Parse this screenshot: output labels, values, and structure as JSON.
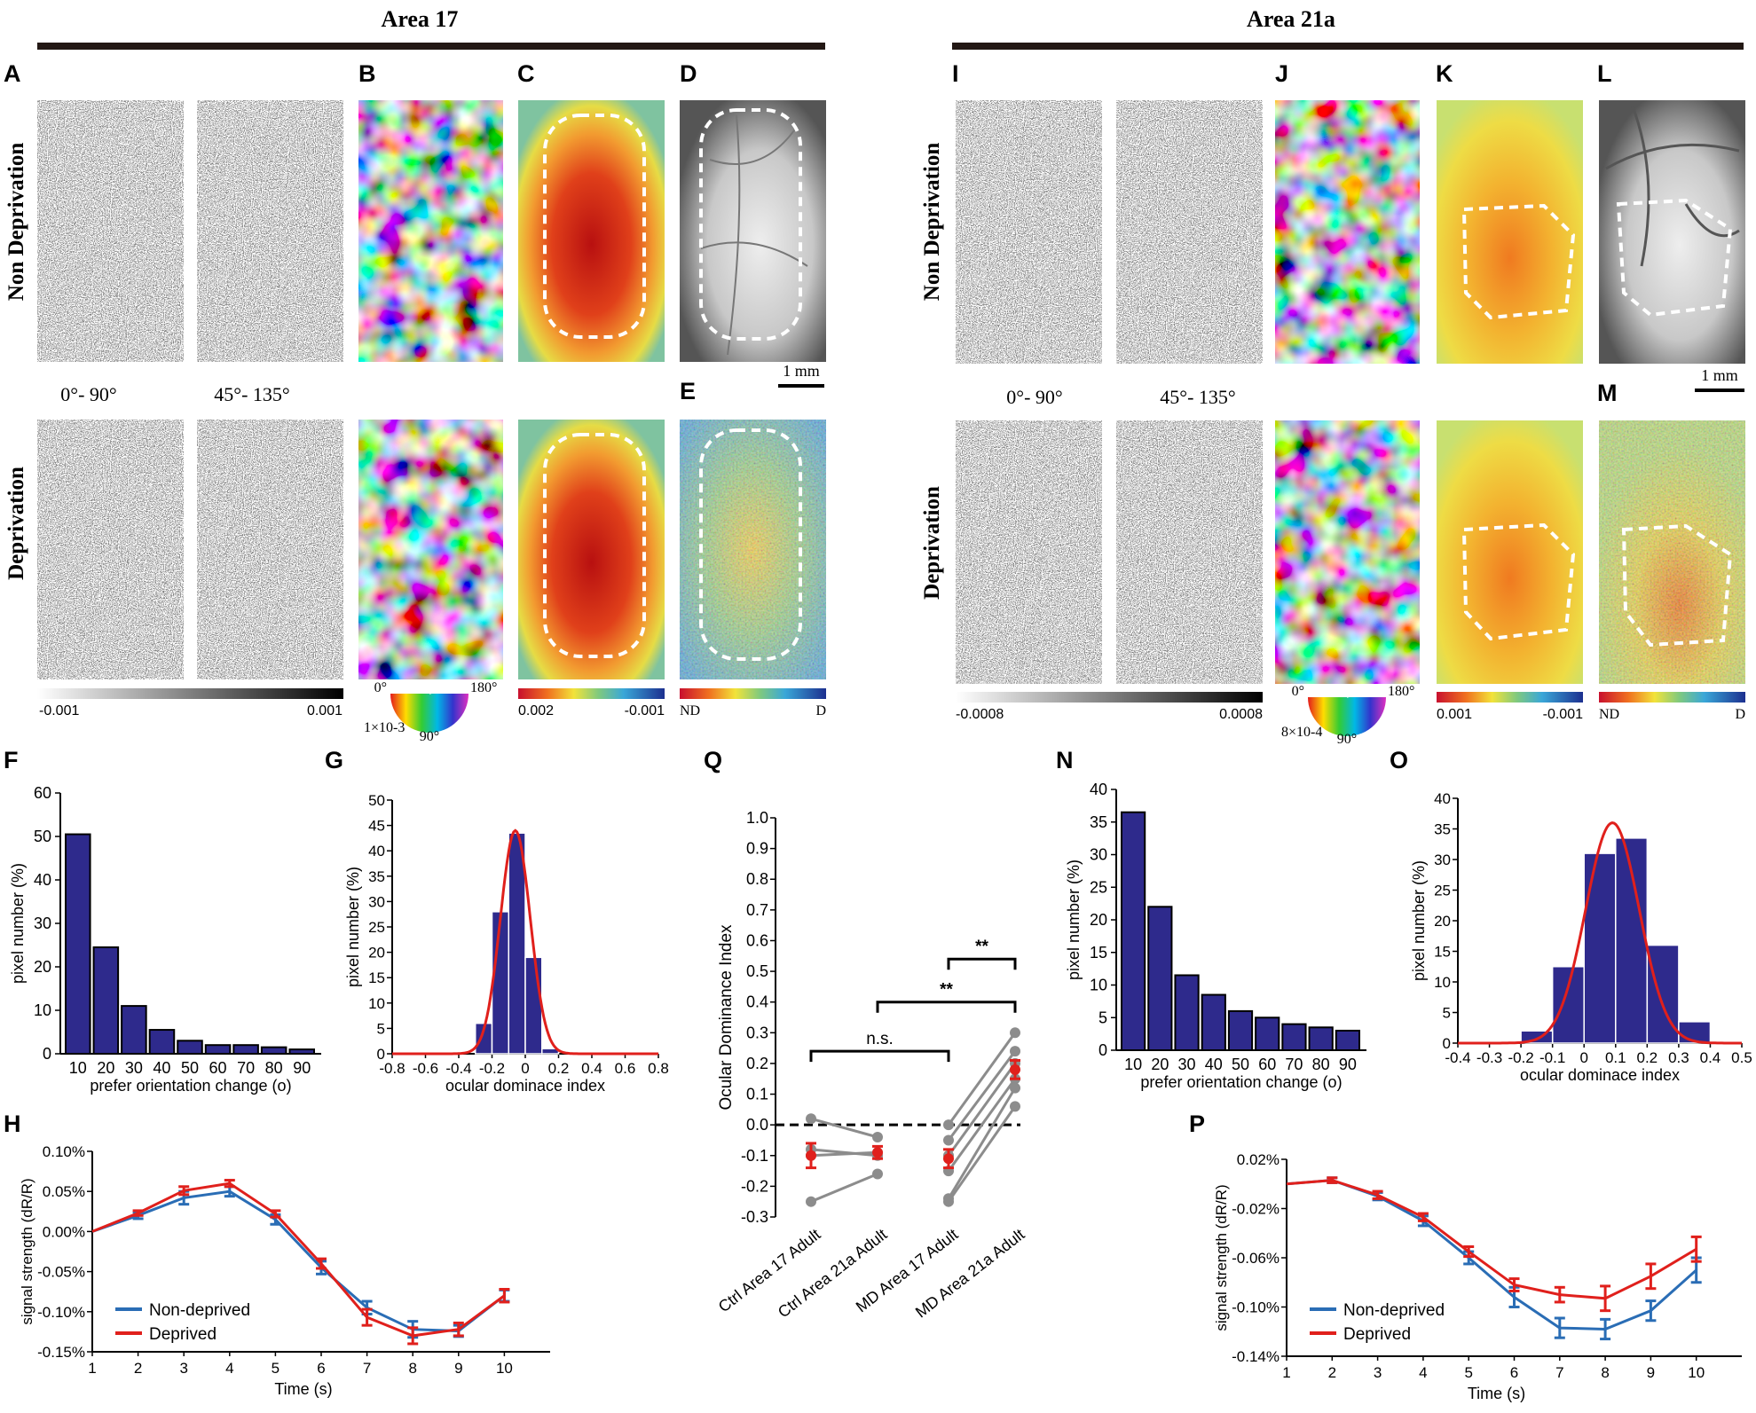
{
  "headers": {
    "left": "Area 17",
    "right": "Area 21a"
  },
  "panel_letters": {
    "A": "A",
    "B": "B",
    "C": "C",
    "D": "D",
    "E": "E",
    "I": "I",
    "J": "J",
    "K": "K",
    "L": "L",
    "M": "M",
    "F": "F",
    "G": "G",
    "H": "H",
    "Q": "Q",
    "N": "N",
    "O": "O",
    "P": "P"
  },
  "row_labels": {
    "top": "Non Deprivation",
    "bottom": "Deprivation"
  },
  "stim_labels": {
    "a17_first": "0°- 90°",
    "a17_second": "45°- 135°",
    "a21_first": "0°- 90°",
    "a21_second": "45°- 135°"
  },
  "scale_bars": {
    "a17": "1 mm",
    "a21": "1 mm"
  },
  "colorbars": {
    "a17_gray": {
      "min": "-0.001",
      "max": "0.001"
    },
    "a17_polar": {
      "start": "0°",
      "end": "180°",
      "mid": "90°",
      "scale": "1×10-3"
    },
    "a17_od": {
      "min": "0.002",
      "max": "-0.001"
    },
    "a17_nd": {
      "min": "ND",
      "max": "D"
    },
    "a21_gray": {
      "min": "-0.0008",
      "max": "0.0008"
    },
    "a21_polar": {
      "start": "0°",
      "end": "180°",
      "mid": "90°",
      "scale": "8×10-4"
    },
    "a21_od": {
      "min": "0.001",
      "max": "-0.001"
    },
    "a21_nd": {
      "min": "ND",
      "max": "D"
    }
  },
  "colors": {
    "bar": "#2e2a8c",
    "fit": "#e0201c",
    "nondeprived": "#2a6db5",
    "deprived": "#e0201c",
    "pair": "#8c8c8c"
  },
  "chart_data": [
    {
      "id": "F",
      "type": "bar",
      "categories": [
        "10",
        "20",
        "30",
        "40",
        "50",
        "60",
        "70",
        "80",
        "90"
      ],
      "values": [
        50.5,
        24.5,
        11,
        5.5,
        3,
        2,
        2,
        1.5,
        1
      ],
      "xlabel": "prefer orientation change (o)",
      "ylabel": "pixel number  (%)",
      "ylim": [
        0,
        60
      ],
      "yticks": [
        "0",
        "10",
        "20",
        "30",
        "40",
        "50",
        "60"
      ]
    },
    {
      "id": "G",
      "type": "bar",
      "bin_centers": [
        -0.25,
        -0.15,
        -0.05,
        0.05,
        0.15
      ],
      "values": [
        6,
        28,
        43.5,
        19,
        1
      ],
      "fit": {
        "mean": -0.06,
        "sd": 0.09,
        "peak": 44
      },
      "xlabel": "ocular dominace index",
      "ylabel": "pixel number (%)",
      "xlim": [
        -0.8,
        0.8
      ],
      "ylim": [
        0,
        50
      ],
      "xticks": [
        "-0.8",
        "-0.6",
        "-0.4",
        "-0.2",
        "0",
        "0.2",
        "0.4",
        "0.6",
        "0.8"
      ],
      "yticks": [
        "0",
        "5",
        "10",
        "15",
        "20",
        "25",
        "30",
        "35",
        "40",
        "45",
        "50"
      ]
    },
    {
      "id": "H",
      "type": "line",
      "x": [
        1,
        2,
        3,
        4,
        5,
        6,
        7,
        8,
        9,
        10
      ],
      "series": [
        {
          "name": "Non-deprived",
          "values": [
            0,
            0.02,
            0.042,
            0.05,
            0.015,
            -0.045,
            -0.095,
            -0.122,
            -0.124,
            -0.08
          ],
          "err": [
            0,
            0.004,
            0.008,
            0.006,
            0.006,
            0.008,
            0.008,
            0.01,
            0.007,
            0.007
          ]
        },
        {
          "name": "Deprived",
          "values": [
            0,
            0.023,
            0.051,
            0.06,
            0.022,
            -0.04,
            -0.107,
            -0.13,
            -0.122,
            -0.08
          ],
          "err": [
            0,
            0.003,
            0.005,
            0.004,
            0.004,
            0.006,
            0.01,
            0.01,
            0.008,
            0.008
          ]
        }
      ],
      "xlabel": "Time (s)",
      "ylabel": "signal strength (dR/R)",
      "ylim": [
        -0.15,
        0.1
      ],
      "yticks": [
        "-0.15%",
        "-0.10%",
        "-0.05%",
        "0.00%",
        "0.05%",
        "0.10%"
      ],
      "xticks": [
        "1",
        "2",
        "3",
        "4",
        "5",
        "6",
        "7",
        "8",
        "9",
        "10"
      ]
    },
    {
      "id": "Q",
      "type": "scatter",
      "categories": [
        "Ctrl Area 17 Adult",
        "Ctrl Area 21a Adult",
        "MD Area 17 Adult",
        "MD Area 21a Adult"
      ],
      "pairs_left": [
        [
          0.02,
          -0.04
        ],
        [
          -0.08,
          -0.1
        ],
        [
          -0.1,
          -0.09
        ],
        [
          -0.25,
          -0.16
        ]
      ],
      "pairs_right": [
        [
          0.0,
          0.3
        ],
        [
          -0.05,
          0.24
        ],
        [
          -0.1,
          0.2
        ],
        [
          -0.15,
          0.15
        ],
        [
          -0.24,
          0.12
        ],
        [
          -0.25,
          0.06
        ]
      ],
      "means": [
        -0.1,
        -0.09,
        -0.11,
        0.18
      ],
      "sems": [
        0.04,
        0.02,
        0.03,
        0.03
      ],
      "stats": {
        "ns": "n.s.",
        "sig1": "**",
        "sig2": "**"
      },
      "ylabel": "Ocular Dominance Index",
      "ylim": [
        -0.3,
        1.0
      ],
      "yticks": [
        "-0.3",
        "-0.2",
        "-0.1",
        "0.0",
        "0.1",
        "0.2",
        "0.3",
        "0.4",
        "0.5",
        "0.6",
        "0.7",
        "0.8",
        "0.9",
        "1.0"
      ]
    },
    {
      "id": "N",
      "type": "bar",
      "categories": [
        "10",
        "20",
        "30",
        "40",
        "50",
        "60",
        "70",
        "80",
        "90"
      ],
      "values": [
        36.5,
        22,
        11.5,
        8.5,
        6,
        5,
        4,
        3.5,
        3
      ],
      "xlabel": "prefer orientation change (o)",
      "ylabel": "pixel number (%)",
      "ylim": [
        0,
        40
      ],
      "yticks": [
        "0",
        "5",
        "10",
        "15",
        "20",
        "25",
        "30",
        "35",
        "40"
      ]
    },
    {
      "id": "O",
      "type": "bar",
      "bin_centers": [
        -0.05,
        0.05,
        0.15,
        0.25
      ],
      "values": [
        12.5,
        31,
        33.5,
        16
      ],
      "extra_bins": {
        "centers": [
          -0.15,
          0.35
        ],
        "values": [
          2,
          3.5
        ]
      },
      "fit": {
        "mean": 0.09,
        "sd": 0.085,
        "peak": 36
      },
      "xlabel": "ocular dominace index",
      "ylabel": "pixel number (%)",
      "xlim": [
        -0.4,
        0.5
      ],
      "ylim": [
        0,
        40
      ],
      "xticks": [
        "-0.4",
        "-0.3",
        "-0.2",
        "-0.1",
        "0",
        "0.1",
        "0.2",
        "0.3",
        "0.4",
        "0.5"
      ],
      "yticks": [
        "0",
        "5",
        "10",
        "15",
        "20",
        "25",
        "30",
        "35",
        "40"
      ]
    },
    {
      "id": "P",
      "type": "line",
      "x": [
        1,
        2,
        3,
        4,
        5,
        6,
        7,
        8,
        9,
        10
      ],
      "series": [
        {
          "name": "Non-deprived",
          "values": [
            0,
            0.003,
            -0.01,
            -0.03,
            -0.06,
            -0.092,
            -0.117,
            -0.118,
            -0.103,
            -0.07
          ],
          "err": [
            0,
            0.002,
            0.003,
            0.004,
            0.005,
            0.008,
            0.008,
            0.008,
            0.008,
            0.01
          ]
        },
        {
          "name": "Deprived",
          "values": [
            0,
            0.003,
            -0.009,
            -0.027,
            -0.055,
            -0.082,
            -0.09,
            -0.093,
            -0.075,
            -0.053
          ],
          "err": [
            0,
            0.002,
            0.003,
            0.003,
            0.004,
            0.005,
            0.006,
            0.01,
            0.01,
            0.01
          ]
        }
      ],
      "xlabel": "Time (s)",
      "ylabel": "signal strength (dR/R)",
      "ylim": [
        -0.14,
        0.02
      ],
      "yticks": [
        "-0.14%",
        "-0.10%",
        "-0.06%",
        "-0.02%",
        "0.02%"
      ],
      "xticks": [
        "1",
        "2",
        "3",
        "4",
        "5",
        "6",
        "7",
        "8",
        "9",
        "10"
      ]
    }
  ]
}
